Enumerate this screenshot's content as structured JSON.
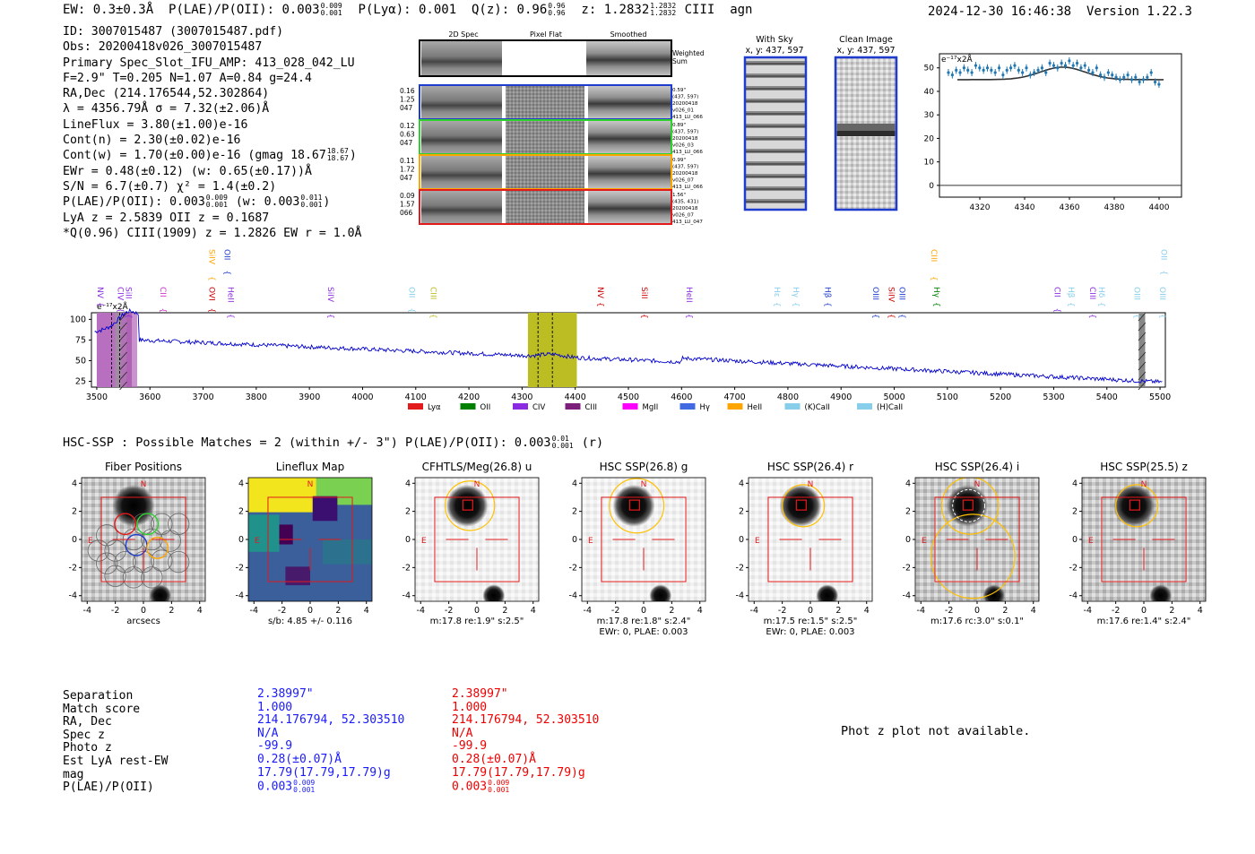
{
  "header": {
    "ew_text": "EW: 0.3±0.3Å",
    "plae_label": "P(LAE)/P(OII): 0.003",
    "plae_hi": "0.009",
    "plae_lo": "0.001",
    "plya_text": "P(Lyα): 0.001",
    "qz_label": "Q(z): 0.96",
    "qz_hi": "0.96",
    "qz_lo": "0.96",
    "z_label": "z: 1.2832",
    "z_hi": "1.2832",
    "z_lo": "1.2832",
    "z_line": "CIII",
    "agn": "agn",
    "datetime": "2024-12-30 16:46:38",
    "version": "Version 1.22.3"
  },
  "info": {
    "id": "ID: 3007015487 (3007015487.pdf)",
    "obs": "Obs: 20200418v026_3007015487",
    "primary": "Primary Spec_Slot_IFU_AMP: 413_028_042_LU",
    "fwhm": "F=2.9\"  T=0.205  N=1.07  A=0.84  g=24.4",
    "radec": "RA,Dec (214.176544,52.302864)",
    "lambda": "λ = 4356.79Å  σ = 7.32(±2.06)Å",
    "lineflux": "LineFlux = 3.80(±1.00)e-16",
    "contn": "Cont(n) = 2.30(±0.02)e-16",
    "contw_a": "Cont(w) = 1.70(±0.00)e-16 (gmag 18.67",
    "contw_hi": "18.67",
    "contw_lo": "18.67",
    "contw_b": ")",
    "ewr": "EWr = 0.48(±0.12) (w: 0.65(±0.17))Å",
    "sn": "S/N = 6.7(±0.7)  χ² = 1.4(±0.2)",
    "plae_a": "P(LAE)/P(OII): 0.003",
    "plae_hi": "0.009",
    "plae_lo": "0.001",
    "plae_b": "(w: 0.003",
    "plae_w_hi": "0.011",
    "plae_w_lo": "0.001",
    "plae_c": ")",
    "lya": "LyA z = 2.5839   OII z = 0.1687",
    "qline": "*Q(0.96) CIII(1909) z = 1.2826  EW r = 1.0Å"
  },
  "cutouts": {
    "col_2d": "2D Spec",
    "col_flat": "Pixel Flat",
    "col_smooth": "Smoothed",
    "weighted": "Weighted",
    "sum": "Sum",
    "rows": [
      {
        "left": [
          "0.16",
          "1.25",
          "047"
        ],
        "right": [
          "0.59\"",
          "(437, 597)",
          "20200418",
          "v026_01",
          "413_LU_066"
        ],
        "color": "#1f3ccf"
      },
      {
        "left": [
          "0.12",
          "0.63",
          "047"
        ],
        "right": [
          "0.89\"",
          "(437, 597)",
          "20200418",
          "v026_03",
          "413_LU_066"
        ],
        "color": "#2fd12f"
      },
      {
        "left": [
          "0.11",
          "1.72",
          "047"
        ],
        "right": [
          "0.99\"",
          "(437, 597)",
          "20200418",
          "v026_07",
          "413_LU_066"
        ],
        "color": "#ffa500"
      },
      {
        "left": [
          "0.09",
          "1.57",
          "066"
        ],
        "right": [
          "1.56\"",
          "(435, 431)",
          "20200418",
          "v026_07",
          "413_LU_047"
        ],
        "color": "#e31a1c"
      }
    ]
  },
  "sky": {
    "with_sky": "With Sky",
    "with_sky_xy": "x, y: 437, 597",
    "clean": "Clean Image",
    "clean_xy": "x, y: 437, 597"
  },
  "zoom_chart": {
    "scale_label": "e⁻¹⁷x2Å",
    "x_ticks": [
      "4320",
      "4340",
      "4360",
      "4380",
      "4400"
    ],
    "y_ticks": [
      "0",
      "10",
      "20",
      "30",
      "40",
      "50"
    ]
  },
  "full_spectrum": {
    "scale_label": "e⁻¹⁷x2Å",
    "x_ticks": [
      "3500",
      "3600",
      "3700",
      "3800",
      "3900",
      "4000",
      "4100",
      "4200",
      "4300",
      "4400",
      "4500",
      "4600",
      "4700",
      "4800",
      "4900",
      "5000",
      "5100",
      "5200",
      "5300",
      "5400",
      "5500"
    ],
    "y_ticks": [
      "25",
      "50",
      "75",
      "100"
    ],
    "line_labels": [
      {
        "text": "NV",
        "x": 3502,
        "color": "#8a2be2",
        "row": "low"
      },
      {
        "text": "CIV",
        "x": 3540,
        "color": "#8a2be2",
        "row": "low"
      },
      {
        "text": "SiII",
        "x": 3555,
        "color": "#8a2be2",
        "row": "low"
      },
      {
        "text": "CII",
        "x": 3620,
        "color": "#cc33cc",
        "row": "low"
      },
      {
        "text": "SiIV",
        "x": 3712,
        "color": "#ffa500",
        "row": "high"
      },
      {
        "text": "OII",
        "x": 3740,
        "color": "#1f3ccf",
        "row": "high"
      },
      {
        "text": "OVI",
        "x": 3712,
        "color": "#cc0000",
        "row": "low"
      },
      {
        "text": "HeII",
        "x": 3747,
        "color": "#8a2be2",
        "row": "low"
      },
      {
        "text": "SiIV",
        "x": 3935,
        "color": "#8a2be2",
        "row": "low"
      },
      {
        "text": "OII",
        "x": 4088,
        "color": "#87ceeb",
        "row": "low"
      },
      {
        "text": "CIII",
        "x": 4128,
        "color": "#bcbd22",
        "row": "low"
      },
      {
        "text": "NV",
        "x": 4443,
        "color": "#cc0000",
        "row": "low"
      },
      {
        "text": "SiII",
        "x": 4525,
        "color": "#cc0000",
        "row": "low"
      },
      {
        "text": "HeII",
        "x": 4610,
        "color": "#8a2be2",
        "row": "low"
      },
      {
        "text": "Hε",
        "x": 4775,
        "color": "#87ceeb",
        "row": "low"
      },
      {
        "text": "Hγ",
        "x": 4810,
        "color": "#87ceeb",
        "row": "low"
      },
      {
        "text": "Hβ",
        "x": 4870,
        "color": "#1f3ccf",
        "row": "low"
      },
      {
        "text": "OIII",
        "x": 4960,
        "color": "#1f3ccf",
        "row": "low"
      },
      {
        "text": "SiIV",
        "x": 4990,
        "color": "#cc0000",
        "row": "low"
      },
      {
        "text": "OIII",
        "x": 5010,
        "color": "#1f3ccf",
        "row": "low"
      },
      {
        "text": "CIII",
        "x": 5070,
        "color": "#ffa500",
        "row": "high"
      },
      {
        "text": "Hγ",
        "x": 5075,
        "color": "#008000",
        "row": "low"
      },
      {
        "text": "CII",
        "x": 5302,
        "color": "#8a2be2",
        "row": "low"
      },
      {
        "text": "Hβ",
        "x": 5328,
        "color": "#87ceeb",
        "row": "low"
      },
      {
        "text": "CIII",
        "x": 5368,
        "color": "#8a2be2",
        "row": "low"
      },
      {
        "text": "Hδ",
        "x": 5385,
        "color": "#87ceeb",
        "row": "low"
      },
      {
        "text": "OIII",
        "x": 5452,
        "color": "#87ceeb",
        "row": "low"
      },
      {
        "text": "OII",
        "x": 5502,
        "color": "#87ceeb",
        "row": "high"
      },
      {
        "text": "OIII",
        "x": 5500,
        "color": "#87ceeb",
        "row": "low"
      }
    ],
    "legend": [
      {
        "label": "Lyα",
        "color": "#e31a1c"
      },
      {
        "label": "OII",
        "color": "#008000"
      },
      {
        "label": "CIV",
        "color": "#8a2be2"
      },
      {
        "label": "CIII",
        "color": "#7b1f7b"
      },
      {
        "label": "MgII",
        "color": "#ff00ff"
      },
      {
        "label": "Hγ",
        "color": "#4169e1"
      },
      {
        "label": "HeII",
        "color": "#ffa500"
      },
      {
        "label": "(K)CaII",
        "color": "#87ceeb"
      },
      {
        "label": "(H)CaII",
        "color": "#87ceeb"
      }
    ]
  },
  "hsc": {
    "header_a": "HSC-SSP : Possible Matches = 2 (within +/- 3\")  P(LAE)/P(OII): 0.003",
    "header_hi": "0.01",
    "header_lo": "0.001",
    "header_b": "(r)",
    "panels": [
      {
        "title": "Fiber Positions",
        "caption": "arcsecs",
        "caption2": ""
      },
      {
        "title": "Lineflux Map",
        "caption": "s/b: 4.85 +/- 0.116",
        "caption2": ""
      },
      {
        "title": "CFHTLS/Meg(26.8) u",
        "caption": "m:17.8  re:1.9\"  s:2.5\"",
        "caption2": ""
      },
      {
        "title": "HSC SSP(26.8) g",
        "caption": "m:17.8  re:1.8\"  s:2.4\"",
        "caption2": "EWr: 0, PLAE: 0.003"
      },
      {
        "title": "HSC SSP(26.4) r",
        "caption": "m:17.5  re:1.5\"  s:2.5\"",
        "caption2": "EWr: 0, PLAE: 0.003"
      },
      {
        "title": "HSC SSP(26.4) i",
        "caption": "m:17.6  rc:3.0\"  s:0.1\"",
        "caption2": ""
      },
      {
        "title": "HSC SSP(25.5) z",
        "caption": "m:17.6  re:1.4\"  s:2.4\"",
        "caption2": ""
      }
    ],
    "axis_ticks": [
      "-4",
      "-2",
      "0",
      "2",
      "4"
    ],
    "north": "N",
    "east": "E"
  },
  "matches": {
    "labels": [
      "Separation",
      "Match score",
      "RA, Dec",
      "Spec z",
      "Photo z",
      "Est LyA rest-EW",
      "mag",
      "P(LAE)/P(OII)"
    ],
    "blue": [
      "2.38997\"",
      "1.000",
      "214.176794, 52.303510",
      "N/A",
      "-99.9",
      "0.28(±0.07)Å",
      "17.79(17.79,17.79)g"
    ],
    "red": [
      "2.38997\"",
      "1.000",
      "214.176794, 52.303510",
      "N/A",
      "-99.9",
      "0.28(±0.07)Å",
      "17.79(17.79,17.79)g"
    ],
    "plae_blue": "0.003",
    "plae_blue_hi": "0.009",
    "plae_blue_lo": "0.001",
    "plae_red": "0.003",
    "plae_red_hi": "0.009",
    "plae_red_lo": "0.001",
    "photz_msg": "Phot z plot not available."
  },
  "colors": {
    "blue_match": "#1a1aff",
    "red_match": "#ee0000",
    "spectrum": "#0000cc"
  }
}
